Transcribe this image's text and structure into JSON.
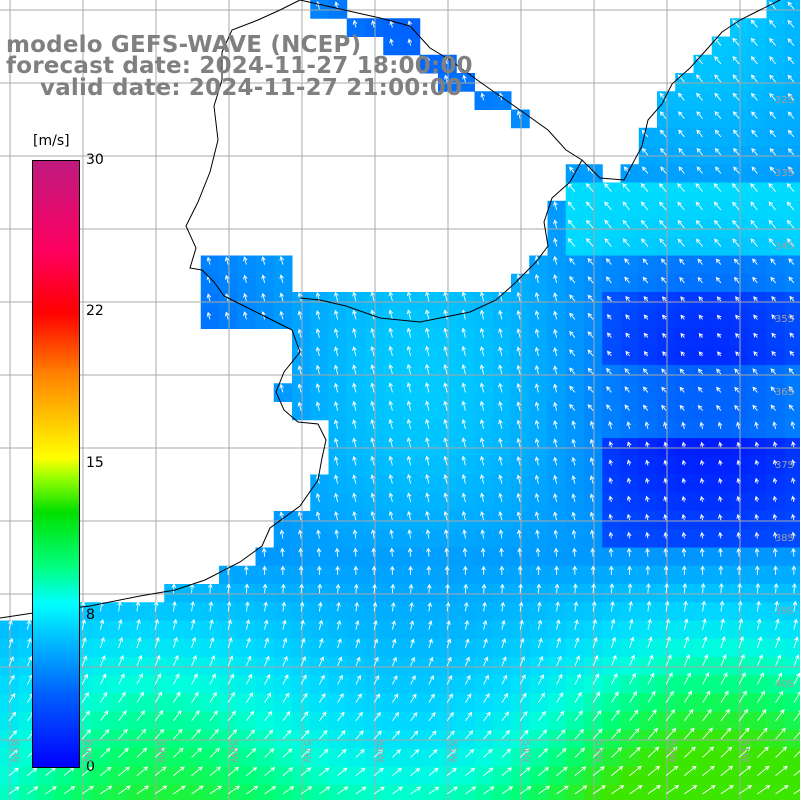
{
  "titles": {
    "model": "modelo GEFS-WAVE (NCEP)",
    "forecast": "forecast date: 2024-11-27 18:00:00",
    "valid": "valid date: 2024-11-27 21:00:00"
  },
  "colorbar": {
    "unit": "[m/s]",
    "ticks": [
      "30",
      "22",
      "15",
      "8",
      "0"
    ],
    "min": 0,
    "max": 30
  },
  "grid": {
    "lat_labels": [
      "32S",
      "33S",
      "34S",
      "35S",
      "36S",
      "37S",
      "38S",
      "39S",
      "40S"
    ],
    "lon_labels": [
      "61W",
      "60W",
      "59W",
      "58W",
      "57W",
      "56W",
      "55W",
      "54W",
      "53W",
      "52W",
      "51W"
    ]
  },
  "colors": {
    "land": "#ffffff",
    "coast": "#000000",
    "grid": "#a8a8a8",
    "title": "#808080",
    "arrow": "#ffffff"
  },
  "field": {
    "description_hidden": "",
    "speed_range_ms": [
      0,
      12
    ]
  }
}
